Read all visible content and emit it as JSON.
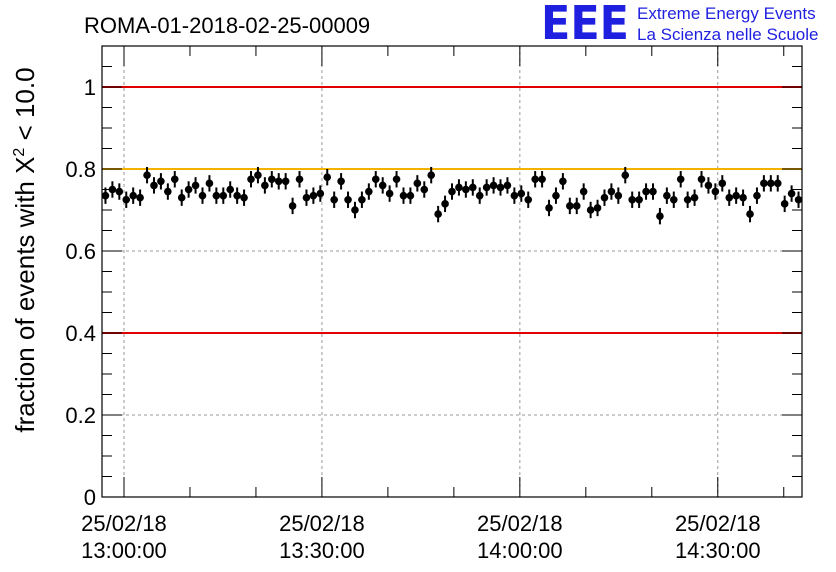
{
  "chart_data": {
    "type": "scatter",
    "title": "ROMA-01-2018-02-25-00009",
    "ylabel_prefix": "fraction of events with ",
    "ylabel_symbol": "X",
    "ylabel_sup": "2",
    "ylabel_suffix": " < 10.0",
    "ylim": [
      0,
      1.1
    ],
    "yticks": [
      "0",
      "0.2",
      "0.4",
      "0.6",
      "0.8",
      "1"
    ],
    "xtick_labels": [
      [
        "25/02/18",
        "13:00:00"
      ],
      [
        "25/02/18",
        "13:30:00"
      ],
      [
        "25/02/18",
        "14:00:00"
      ],
      [
        "25/02/18",
        "14:30:00"
      ]
    ],
    "x_unit": "minutes after 25/02/18 12:56:40",
    "xlim": [
      0,
      106.1
    ],
    "grid": true,
    "reference_lines": [
      {
        "y": 1.0,
        "color": "#e00000"
      },
      {
        "y": 0.8,
        "color": "#f2b200"
      },
      {
        "y": 0.4,
        "color": "#e00000"
      }
    ],
    "marker_color": "#000000",
    "error": 0.02,
    "series": [
      {
        "values": [
          0.735,
          0.75,
          0.745,
          0.725,
          0.735,
          0.73,
          0.785,
          0.76,
          0.77,
          0.745,
          0.775,
          0.73,
          0.75,
          0.76,
          0.735,
          0.765,
          0.735,
          0.735,
          0.75,
          0.735,
          0.73,
          0.775,
          0.785,
          0.76,
          0.775,
          0.77,
          0.77,
          0.71,
          0.775,
          0.73,
          0.735,
          0.74,
          0.78,
          0.725,
          0.77,
          0.725,
          0.7,
          0.725,
          0.745,
          0.775,
          0.76,
          0.74,
          0.775,
          0.735,
          0.735,
          0.765,
          0.75,
          0.785,
          0.69,
          0.715,
          0.745,
          0.755,
          0.75,
          0.755,
          0.735,
          0.755,
          0.76,
          0.755,
          0.76,
          0.735,
          0.74,
          0.725,
          0.775,
          0.775,
          0.705,
          0.735,
          0.77,
          0.71,
          0.71,
          0.745,
          0.7,
          0.705,
          0.73,
          0.745,
          0.735,
          0.785,
          0.725,
          0.725,
          0.745,
          0.745,
          0.685,
          0.735,
          0.725,
          0.775,
          0.725,
          0.73,
          0.775,
          0.76,
          0.745,
          0.765,
          0.73,
          0.735,
          0.73,
          0.69,
          0.735,
          0.765,
          0.765,
          0.765,
          0.715,
          0.74,
          0.725
        ]
      }
    ]
  },
  "logo": {
    "mark": "EEE",
    "line1": "Extreme Energy Events",
    "line2": "La Scienza nelle Scuole"
  }
}
